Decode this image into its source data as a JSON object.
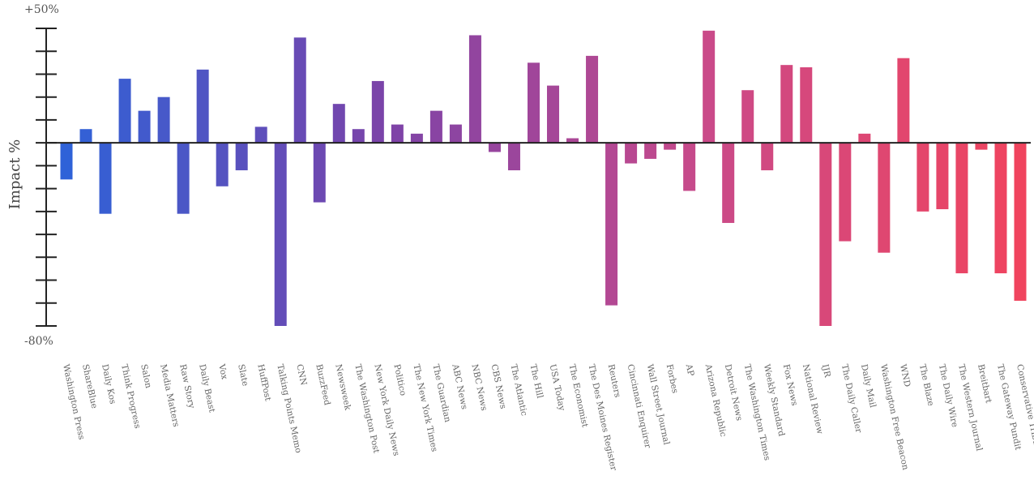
{
  "chart_data": {
    "type": "bar",
    "title": "",
    "xlabel": "",
    "ylabel": "Impact %",
    "ylim": [
      -80,
      50
    ],
    "y_top_label": "+50%",
    "y_bottom_label": "-80%",
    "grid": false,
    "legend": "none",
    "color_gradient": [
      "#2f62d8",
      "#7c43a8",
      "#c94a8a",
      "#f0445e"
    ],
    "categories": [
      "Washington Press",
      "ShareBlue",
      "Daily Kos",
      "Think Progress",
      "Salon",
      "Media Matters",
      "Raw Story",
      "Daily Beast",
      "Vox",
      "Slate",
      "HuffPost",
      "Talking Points Memo",
      "CNN",
      "BuzzFeed",
      "Newsweek",
      "The Washington Post",
      "New York Daily News",
      "Politico",
      "The New York Times",
      "The Guardian",
      "ABC News",
      "NBC News",
      "CBS News",
      "The Atlantic",
      "The Hill",
      "USA Today",
      "The Economist",
      "The Des Moines Register",
      "Reuters",
      "Cincinnati Enquirer",
      "Wall Street Journal",
      "Forbes",
      "AP",
      "Arizona Republic",
      "Detroit News",
      "The Washington Times",
      "Weekly Standard",
      "Fox News",
      "National Review",
      "IJR",
      "The Daily Caller",
      "Daily Mail",
      "Washington Free Beacon",
      "WND",
      "The Blaze",
      "The Daily Wire",
      "The Western Journal",
      "Breitbart",
      "The Gateway Pundit",
      "Conservative Tribune"
    ],
    "values": [
      -16,
      6,
      -31,
      28,
      14,
      20,
      -31,
      32,
      -19,
      -12,
      7,
      -80,
      46,
      -26,
      17,
      6,
      27,
      8,
      4,
      14,
      8,
      47,
      -4,
      -12,
      35,
      25,
      2,
      38,
      -71,
      -9,
      -7,
      -3,
      -21,
      49,
      -35,
      23,
      -12,
      34,
      33,
      -80,
      -43,
      4,
      -48,
      37,
      -30,
      -29,
      -57,
      -3,
      -57,
      -69
    ]
  }
}
